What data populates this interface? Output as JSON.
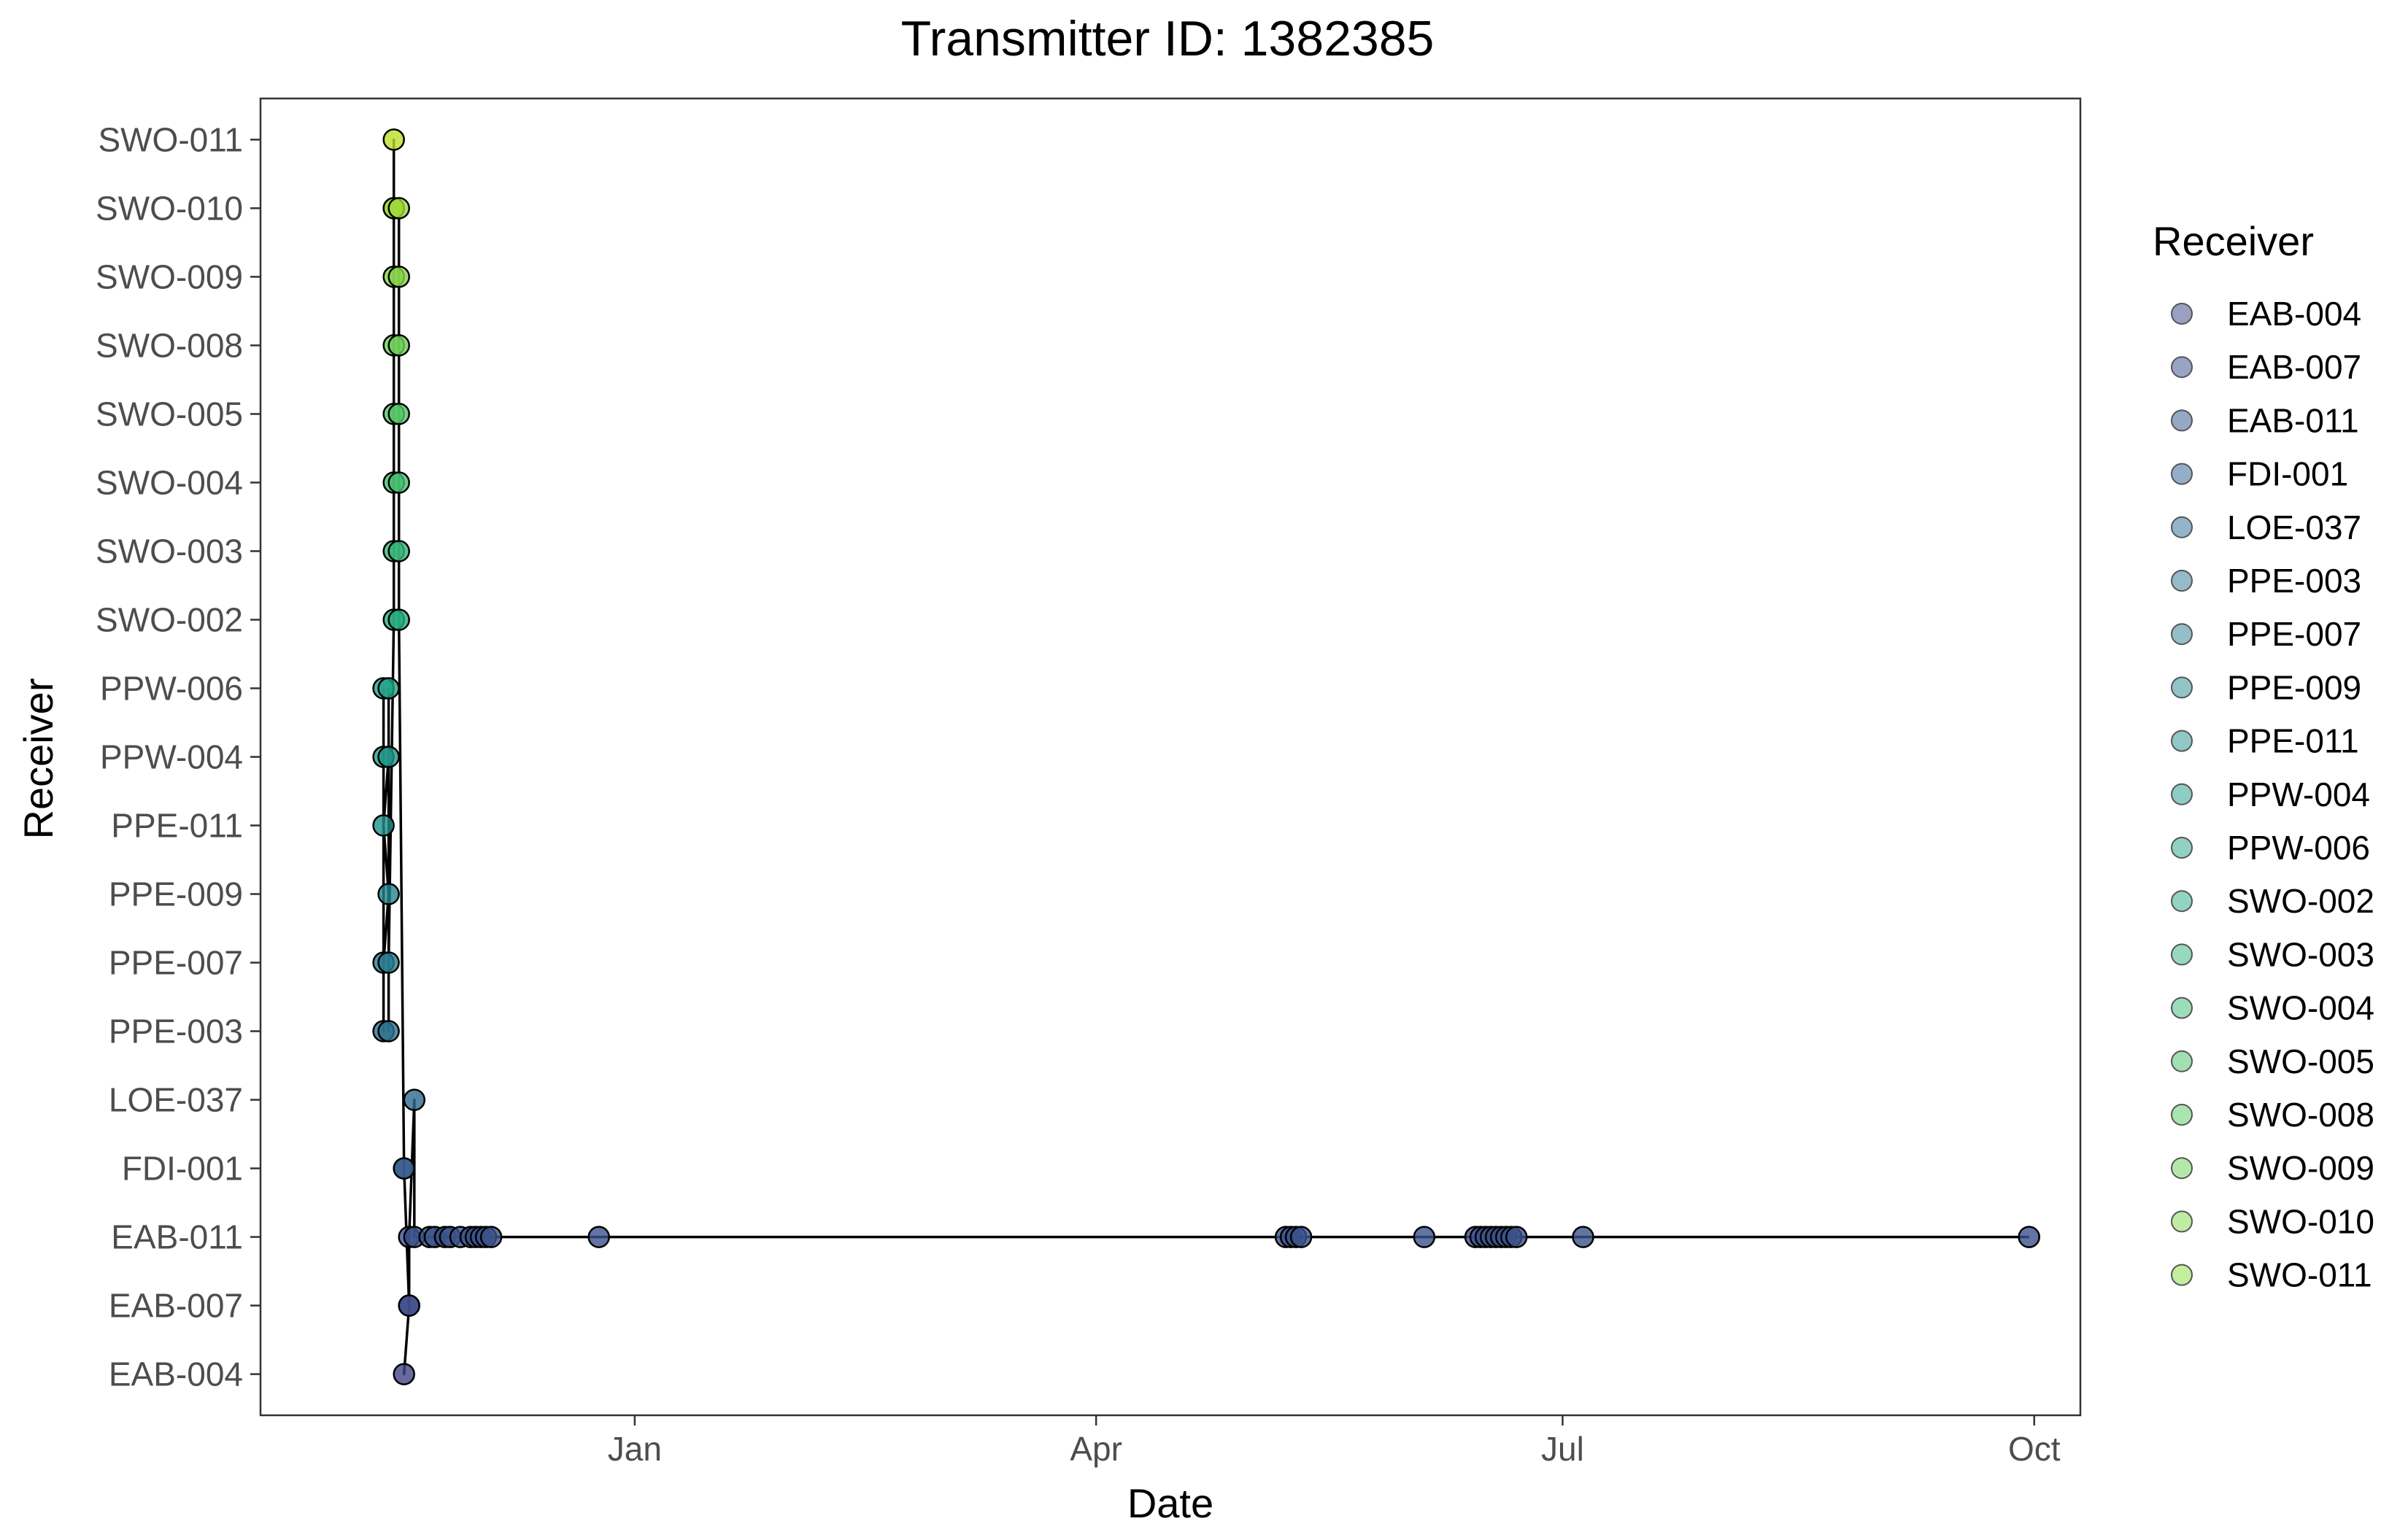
{
  "chart_data": {
    "type": "scatter",
    "title": "Transmitter ID: 1382385",
    "xlabel": "Date",
    "ylabel": "Receiver",
    "x_ticks": [
      {
        "label": "Jan",
        "date": "2023-01-01"
      },
      {
        "label": "Apr",
        "date": "2023-04-01"
      },
      {
        "label": "Jul",
        "date": "2023-07-01"
      },
      {
        "label": "Oct",
        "date": "2023-10-01"
      }
    ],
    "xlim": [
      "2022-10-20",
      "2023-10-10"
    ],
    "categories": [
      "EAB-004",
      "EAB-007",
      "EAB-011",
      "FDI-001",
      "LOE-037",
      "PPE-003",
      "PPE-007",
      "PPE-009",
      "PPE-011",
      "PPW-004",
      "PPW-006",
      "SWO-002",
      "SWO-003",
      "SWO-004",
      "SWO-005",
      "SWO-008",
      "SWO-009",
      "SWO-010",
      "SWO-011"
    ],
    "colors": [
      "#414487",
      "#3e4c8a",
      "#3b528b",
      "#365d8d",
      "#31688e",
      "#2c728e",
      "#287c8e",
      "#24868e",
      "#21908d",
      "#1f998a",
      "#20a386",
      "#26ad81",
      "#35b779",
      "#44bf70",
      "#56c667",
      "#6ece58",
      "#86d549",
      "#a0da39",
      "#bade28"
    ],
    "legend": {
      "title": "Receiver",
      "position": "right",
      "colors": [
        "#9aa0c1",
        "#97a4c3",
        "#95a8c5",
        "#94aeca",
        "#94b4c9",
        "#95bac9",
        "#94bfca",
        "#92c4c8",
        "#90c8c6",
        "#8fccc5",
        "#90d1c3",
        "#92d4c1",
        "#98d9bd",
        "#9ddcb8",
        "#a3dfb3",
        "#abe4ae",
        "#b5e8a8",
        "#bfeba3",
        "#c4ee9d"
      ]
    },
    "grid": false,
    "line": "path connecting detections in chronological order",
    "points": [
      {
        "x": "2022-11-13",
        "y": "PPW-006"
      },
      {
        "x": "2022-11-13",
        "y": "PPW-004"
      },
      {
        "x": "2022-11-13",
        "y": "PPE-003"
      },
      {
        "x": "2022-11-13",
        "y": "PPE-007"
      },
      {
        "x": "2022-11-14",
        "y": "PPE-009"
      },
      {
        "x": "2022-11-13",
        "y": "PPE-011"
      },
      {
        "x": "2022-11-14",
        "y": "PPW-004"
      },
      {
        "x": "2022-11-14",
        "y": "PPW-006"
      },
      {
        "x": "2022-11-14",
        "y": "PPE-003"
      },
      {
        "x": "2022-11-14",
        "y": "PPE-007"
      },
      {
        "x": "2022-11-15",
        "y": "SWO-002"
      },
      {
        "x": "2022-11-15",
        "y": "SWO-003"
      },
      {
        "x": "2022-11-15",
        "y": "SWO-004"
      },
      {
        "x": "2022-11-15",
        "y": "SWO-005"
      },
      {
        "x": "2022-11-15",
        "y": "SWO-008"
      },
      {
        "x": "2022-11-15",
        "y": "SWO-009"
      },
      {
        "x": "2022-11-15",
        "y": "SWO-010"
      },
      {
        "x": "2022-11-15",
        "y": "SWO-011"
      },
      {
        "x": "2022-11-15",
        "y": "SWO-010"
      },
      {
        "x": "2022-11-16",
        "y": "SWO-010"
      },
      {
        "x": "2022-11-16",
        "y": "SWO-009"
      },
      {
        "x": "2022-11-16",
        "y": "SWO-008"
      },
      {
        "x": "2022-11-16",
        "y": "SWO-005"
      },
      {
        "x": "2022-11-16",
        "y": "SWO-004"
      },
      {
        "x": "2022-11-16",
        "y": "SWO-003"
      },
      {
        "x": "2022-11-16",
        "y": "SWO-002"
      },
      {
        "x": "2022-11-17",
        "y": "FDI-001"
      },
      {
        "x": "2022-11-17",
        "y": "FDI-001"
      },
      {
        "x": "2022-11-18",
        "y": "EAB-007"
      },
      {
        "x": "2022-11-17",
        "y": "EAB-004"
      },
      {
        "x": "2022-11-18",
        "y": "EAB-007"
      },
      {
        "x": "2022-11-18",
        "y": "EAB-011"
      },
      {
        "x": "2022-11-19",
        "y": "LOE-037"
      },
      {
        "x": "2022-11-19",
        "y": "EAB-011"
      },
      {
        "x": "2022-11-22",
        "y": "EAB-011"
      },
      {
        "x": "2022-11-23",
        "y": "EAB-011"
      },
      {
        "x": "2022-11-25",
        "y": "EAB-011"
      },
      {
        "x": "2022-11-26",
        "y": "EAB-011"
      },
      {
        "x": "2022-11-28",
        "y": "EAB-011"
      },
      {
        "x": "2022-11-30",
        "y": "EAB-011"
      },
      {
        "x": "2022-12-01",
        "y": "EAB-011"
      },
      {
        "x": "2022-12-02",
        "y": "EAB-011"
      },
      {
        "x": "2022-12-03",
        "y": "EAB-011"
      },
      {
        "x": "2022-12-04",
        "y": "EAB-011"
      },
      {
        "x": "2022-12-25",
        "y": "EAB-011"
      },
      {
        "x": "2023-05-08",
        "y": "EAB-011"
      },
      {
        "x": "2023-05-09",
        "y": "EAB-011"
      },
      {
        "x": "2023-05-10",
        "y": "EAB-011"
      },
      {
        "x": "2023-05-11",
        "y": "EAB-011"
      },
      {
        "x": "2023-06-04",
        "y": "EAB-011"
      },
      {
        "x": "2023-06-14",
        "y": "EAB-011"
      },
      {
        "x": "2023-06-15",
        "y": "EAB-011"
      },
      {
        "x": "2023-06-16",
        "y": "EAB-011"
      },
      {
        "x": "2023-06-17",
        "y": "EAB-011"
      },
      {
        "x": "2023-06-18",
        "y": "EAB-011"
      },
      {
        "x": "2023-06-19",
        "y": "EAB-011"
      },
      {
        "x": "2023-06-20",
        "y": "EAB-011"
      },
      {
        "x": "2023-06-21",
        "y": "EAB-011"
      },
      {
        "x": "2023-06-22",
        "y": "EAB-011"
      },
      {
        "x": "2023-07-05",
        "y": "EAB-011"
      },
      {
        "x": "2023-09-30",
        "y": "EAB-011"
      }
    ]
  }
}
